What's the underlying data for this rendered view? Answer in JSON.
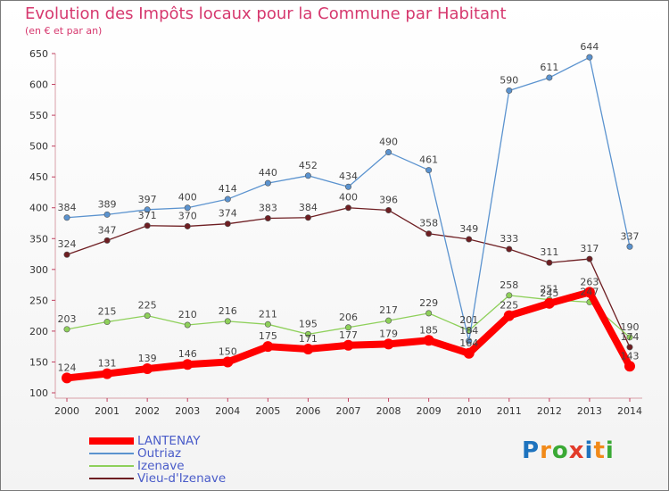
{
  "title": "Evolution des Impôts locaux pour la Commune par Habitant",
  "subtitle": "(en € et par an)",
  "logo": [
    "P",
    "r",
    "o",
    "x",
    "i",
    "t",
    "i"
  ],
  "logo_colors": [
    "#1e73be",
    "#f18a1a",
    "#3aa935",
    "#e23b2a",
    "#1e73be",
    "#f18a1a",
    "#3aa935"
  ],
  "chart_data": {
    "type": "line",
    "title": "Evolution des Impôts locaux pour la Commune par Habitant",
    "subtitle": "(en € et par an)",
    "xlabel": "",
    "ylabel": "",
    "x": [
      "2000",
      "2001",
      "2002",
      "2003",
      "2004",
      "2005",
      "2006",
      "2007",
      "2008",
      "2009",
      "2010",
      "2011",
      "2012",
      "2013",
      "2014"
    ],
    "ylim": [
      100,
      650
    ],
    "yticks": [
      100,
      150,
      200,
      250,
      300,
      350,
      400,
      450,
      500,
      550,
      600,
      650
    ],
    "grid": false,
    "legend_position": "bottom-left",
    "series": [
      {
        "name": "Vieu-d'Izenave",
        "color": "#6e1e22",
        "values": [
          324,
          347,
          371,
          370,
          374,
          383,
          384,
          400,
          396,
          358,
          349,
          333,
          311,
          317,
          174
        ]
      },
      {
        "name": "Izenave",
        "color": "#8ed05a",
        "values": [
          203,
          215,
          225,
          210,
          216,
          211,
          195,
          206,
          217,
          229,
          201,
          258,
          251,
          247,
          190
        ]
      },
      {
        "name": "Outriaz",
        "color": "#5b93cf",
        "values": [
          384,
          389,
          397,
          400,
          414,
          440,
          452,
          434,
          490,
          461,
          184,
          590,
          611,
          644,
          337
        ]
      },
      {
        "name": "LANTENAY",
        "color": "#ff0000",
        "values": [
          124,
          131,
          139,
          146,
          150,
          175,
          171,
          177,
          179,
          185,
          164,
          225,
          245,
          263,
          143
        ]
      }
    ]
  }
}
